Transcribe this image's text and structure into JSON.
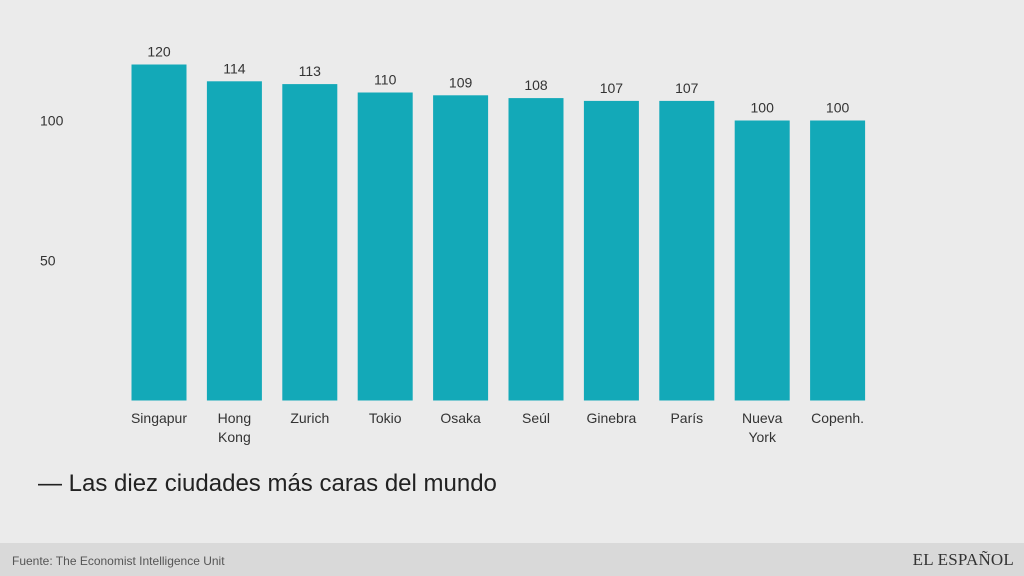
{
  "chart_data": {
    "type": "bar",
    "title": "— Las diez ciudades más caras del mundo",
    "categories": [
      [
        "Singapur"
      ],
      [
        "Hong",
        "Kong"
      ],
      [
        "Zurich"
      ],
      [
        "Tokio"
      ],
      [
        "Osaka"
      ],
      [
        "Seúl"
      ],
      [
        "Ginebra"
      ],
      [
        "París"
      ],
      [
        "Nueva",
        "York"
      ],
      [
        "Copenh."
      ]
    ],
    "values": [
      120,
      114,
      113,
      110,
      109,
      108,
      107,
      107,
      100,
      100
    ],
    "yticks": [
      50,
      100
    ],
    "ylim": [
      0,
      140
    ],
    "grid": false,
    "bar_color": "#13a9b8",
    "xlabel": "",
    "ylabel": ""
  },
  "footer": {
    "source": "Fuente: The Economist Intelligence Unit",
    "brand": "EL ESPAÑOL"
  }
}
